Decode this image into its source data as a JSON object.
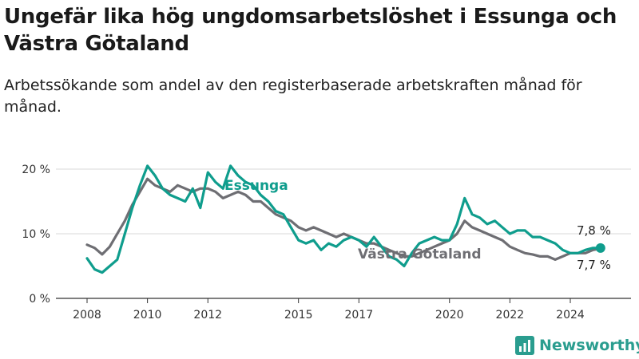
{
  "title": "Ungefär lika hög ungdomsarbetslöshet i Essunga och Västra Götaland",
  "subtitle": "Arbetssökande som andel av den registerbaserade arbetskraften månad för månad.",
  "brand": {
    "name": "Newsworthy",
    "color": "#2a9d8f",
    "icon": "bar-chart-logo-icon"
  },
  "chart_data": {
    "type": "line",
    "ylim": [
      0,
      20
    ],
    "xlim": [
      2007.5,
      2025.5
    ],
    "y_ticks": [
      0,
      10,
      20
    ],
    "y_tick_labels": [
      "0 %",
      "10 %",
      "20 %"
    ],
    "x_tick_labels": [
      "2008",
      "2010",
      "2012",
      "2015",
      "2017",
      "2020",
      "2022",
      "2024"
    ],
    "grid": true,
    "legend": "inline labels",
    "series": [
      {
        "name": "Essunga",
        "color": "#0f9d8d",
        "end_label": "7,8 %",
        "x": [
          2008.0,
          2008.25,
          2008.5,
          2008.75,
          2009.0,
          2009.25,
          2009.5,
          2009.75,
          2010.0,
          2010.25,
          2010.5,
          2010.75,
          2011.0,
          2011.25,
          2011.5,
          2011.75,
          2012.0,
          2012.25,
          2012.5,
          2012.75,
          2013.0,
          2013.25,
          2013.5,
          2013.75,
          2014.0,
          2014.25,
          2014.5,
          2014.75,
          2015.0,
          2015.25,
          2015.5,
          2015.75,
          2016.0,
          2016.25,
          2016.5,
          2016.75,
          2017.0,
          2017.25,
          2017.5,
          2017.75,
          2018.0,
          2018.25,
          2018.5,
          2018.75,
          2019.0,
          2019.25,
          2019.5,
          2019.75,
          2020.0,
          2020.25,
          2020.5,
          2020.75,
          2021.0,
          2021.25,
          2021.5,
          2021.75,
          2022.0,
          2022.25,
          2022.5,
          2022.75,
          2023.0,
          2023.25,
          2023.5,
          2023.75,
          2024.0,
          2024.25,
          2024.5,
          2024.75,
          2025.0
        ],
        "y": [
          6.2,
          4.5,
          4.0,
          5.0,
          6.0,
          10.0,
          14.0,
          17.5,
          20.5,
          19.0,
          17.0,
          16.0,
          15.5,
          15.0,
          17.0,
          14.0,
          19.5,
          18.0,
          17.0,
          20.5,
          19.0,
          18.0,
          17.5,
          16.0,
          15.0,
          13.5,
          13.0,
          11.0,
          9.0,
          8.5,
          9.0,
          7.5,
          8.5,
          8.0,
          9.0,
          9.5,
          9.0,
          8.0,
          9.5,
          8.0,
          6.5,
          6.0,
          5.0,
          7.0,
          8.5,
          9.0,
          9.5,
          9.0,
          9.0,
          11.5,
          15.5,
          13.0,
          12.5,
          11.5,
          12.0,
          11.0,
          10.0,
          10.5,
          10.5,
          9.5,
          9.5,
          9.0,
          8.5,
          7.5,
          7.0,
          7.0,
          7.5,
          7.8,
          7.8
        ]
      },
      {
        "name": "Västra Götaland",
        "color": "#6e6e73",
        "end_label": "7,7 %",
        "x": [
          2008.0,
          2008.25,
          2008.5,
          2008.75,
          2009.0,
          2009.25,
          2009.5,
          2009.75,
          2010.0,
          2010.25,
          2010.5,
          2010.75,
          2011.0,
          2011.25,
          2011.5,
          2011.75,
          2012.0,
          2012.25,
          2012.5,
          2012.75,
          2013.0,
          2013.25,
          2013.5,
          2013.75,
          2014.0,
          2014.25,
          2014.5,
          2014.75,
          2015.0,
          2015.25,
          2015.5,
          2015.75,
          2016.0,
          2016.25,
          2016.5,
          2016.75,
          2017.0,
          2017.25,
          2017.5,
          2017.75,
          2018.0,
          2018.25,
          2018.5,
          2018.75,
          2019.0,
          2019.25,
          2019.5,
          2019.75,
          2020.0,
          2020.25,
          2020.5,
          2020.75,
          2021.0,
          2021.25,
          2021.5,
          2021.75,
          2022.0,
          2022.25,
          2022.5,
          2022.75,
          2023.0,
          2023.25,
          2023.5,
          2023.75,
          2024.0,
          2024.25,
          2024.5,
          2024.75,
          2025.0
        ],
        "y": [
          8.3,
          7.8,
          6.8,
          8.0,
          10.0,
          12.0,
          14.5,
          16.5,
          18.5,
          17.5,
          17.0,
          16.5,
          17.5,
          17.0,
          16.5,
          17.0,
          17.0,
          16.5,
          15.5,
          16.0,
          16.5,
          16.0,
          15.0,
          15.0,
          14.0,
          13.0,
          12.5,
          12.0,
          11.0,
          10.5,
          11.0,
          10.5,
          10.0,
          9.5,
          10.0,
          9.5,
          9.0,
          8.5,
          8.5,
          8.0,
          7.5,
          7.0,
          6.5,
          6.5,
          7.0,
          7.5,
          8.0,
          8.5,
          9.0,
          10.0,
          12.0,
          11.0,
          10.5,
          10.0,
          9.5,
          9.0,
          8.0,
          7.5,
          7.0,
          6.8,
          6.5,
          6.5,
          6.0,
          6.5,
          7.0,
          7.0,
          7.0,
          7.5,
          7.7
        ]
      }
    ]
  }
}
